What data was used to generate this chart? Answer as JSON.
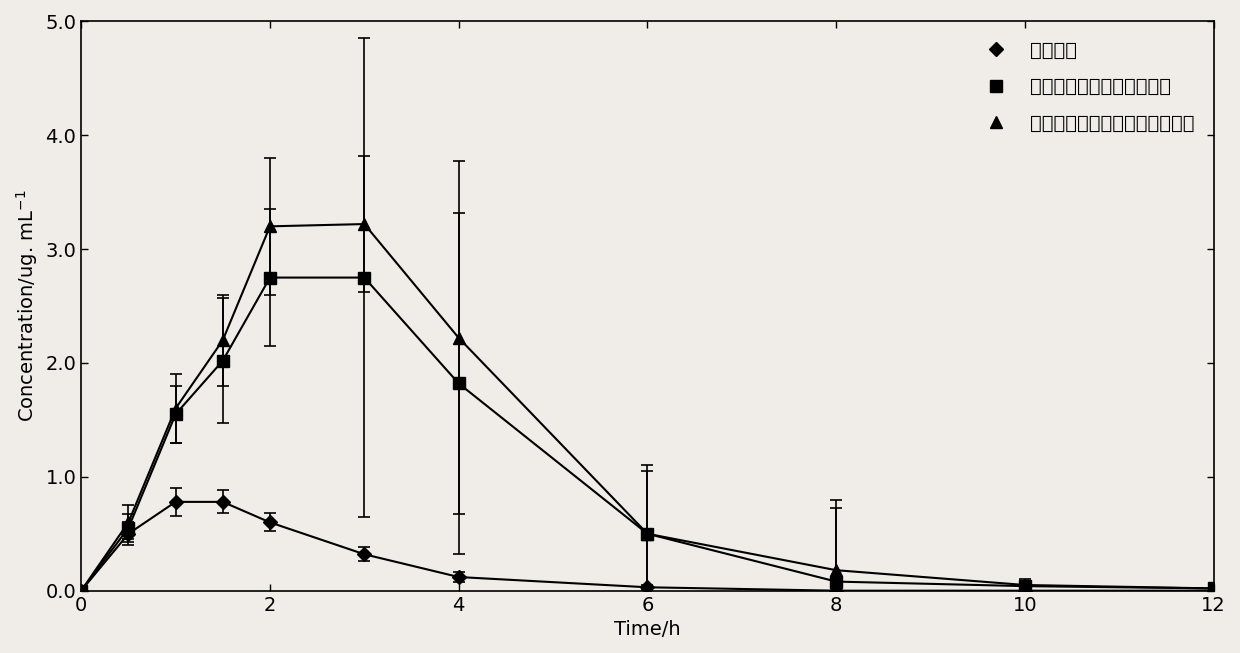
{
  "title": "",
  "xlabel": "Time/h",
  "ylabel": "Concentration/ug. mL$^{-1}$",
  "xlim": [
    0,
    12
  ],
  "ylim": [
    0,
    5.0
  ],
  "xticks": [
    0,
    2,
    4,
    6,
    8,
    10,
    12
  ],
  "yticks": [
    0.0,
    1.0,
    2.0,
    3.0,
    4.0,
    5.0
  ],
  "ytick_labels": [
    "0.0",
    "1.0",
    "2.0",
    "3.0",
    "4.0",
    "5.0"
  ],
  "series": [
    {
      "label": "龙胆总苷",
      "marker": "D",
      "markersize": 7,
      "x": [
        0,
        0.5,
        1.0,
        1.5,
        2.0,
        3.0,
        4.0,
        6.0,
        8.0,
        10.0,
        12.0
      ],
      "y": [
        0.0,
        0.5,
        0.78,
        0.78,
        0.6,
        0.32,
        0.12,
        0.03,
        0.0,
        0.0,
        0.0
      ],
      "yerr": [
        0.0,
        0.1,
        0.12,
        0.1,
        0.08,
        0.06,
        0.04,
        0.02,
        0.0,
        0.0,
        0.0
      ]
    },
    {
      "label": "龙胆总苷磷脂复合物油溶液",
      "marker": "s",
      "markersize": 8,
      "x": [
        0,
        0.5,
        1.0,
        1.5,
        2.0,
        3.0,
        4.0,
        6.0,
        8.0,
        10.0,
        12.0
      ],
      "y": [
        0.0,
        0.55,
        1.55,
        2.02,
        2.75,
        2.75,
        1.82,
        0.5,
        0.08,
        0.04,
        0.02
      ],
      "yerr": [
        0.0,
        0.12,
        0.25,
        0.55,
        0.6,
        2.1,
        1.5,
        0.55,
        0.65,
        0.04,
        0.02
      ]
    },
    {
      "label": "龙胆总苷磷脂复合物自微乳溶液",
      "marker": "^",
      "markersize": 9,
      "x": [
        0,
        0.5,
        1.0,
        1.5,
        2.0,
        3.0,
        4.0,
        6.0,
        8.0,
        10.0,
        12.0
      ],
      "y": [
        0.0,
        0.6,
        1.6,
        2.2,
        3.2,
        3.22,
        2.22,
        0.5,
        0.18,
        0.05,
        0.02
      ],
      "yerr": [
        0.0,
        0.15,
        0.3,
        0.4,
        0.6,
        0.6,
        1.55,
        0.6,
        0.62,
        0.05,
        0.02
      ]
    }
  ],
  "line_color": "#000000",
  "bg_color": "#f0ede8",
  "legend_fontsize": 14,
  "axis_fontsize": 14,
  "tick_fontsize": 14
}
